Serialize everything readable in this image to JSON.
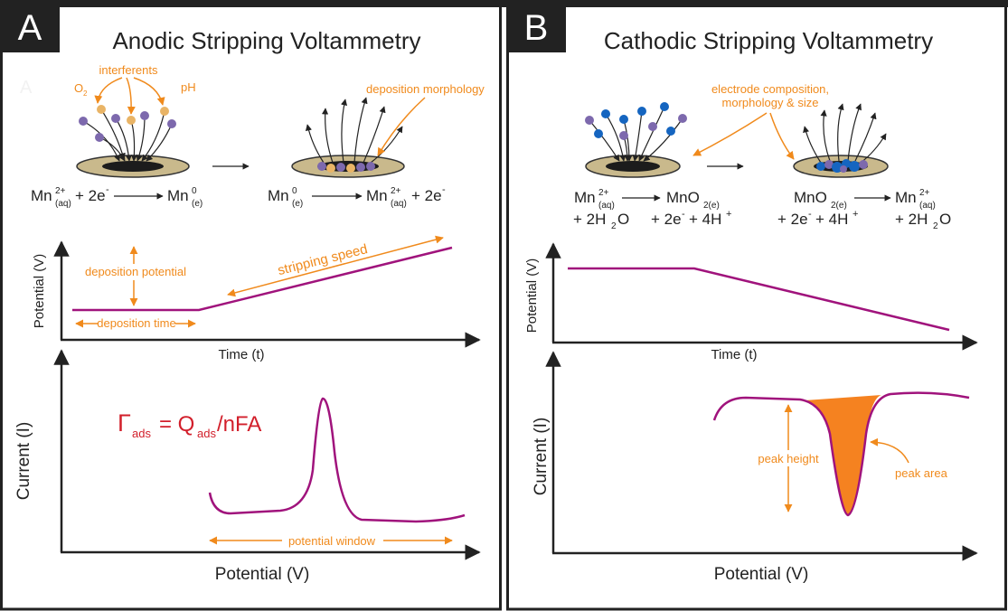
{
  "panel_a": {
    "label": "A",
    "faint_label": "A",
    "title": "Anodic Stripping Voltammetry",
    "interferents": "interferents",
    "o2": [
      "O",
      "2"
    ],
    "ph": "pH",
    "deposition_morphology": "deposition morphology",
    "reaction_deposition": [
      "Mn",
      "2+",
      "(aq)",
      "+ 2e",
      "-",
      "Mn",
      "0",
      "(e)"
    ],
    "reaction_stripping": [
      "Mn",
      "0",
      "(e)",
      "Mn",
      "2+",
      "(aq)",
      "+ 2e",
      "-"
    ],
    "time_plot": {
      "y_label": "Potential (V)",
      "x_label": "Time (t)",
      "deposition_potential": "deposition potential",
      "stripping_speed": "stripping speed",
      "deposition_time": "deposition time"
    },
    "current_plot": {
      "y_label": "Current (I)",
      "x_label": "Potential (V)",
      "formula": [
        "Γ",
        "ads",
        "= Q",
        "ads",
        "/nFA"
      ],
      "potential_window": "potential window"
    }
  },
  "panel_b": {
    "label": "B",
    "title": "Cathodic Stripping Voltammetry",
    "electrode_note": [
      "electrode composition,",
      "morphology & size"
    ],
    "reaction_deposition": {
      "line_1": [
        "Mn",
        "2+",
        "(aq)",
        "MnO",
        "2(e)"
      ],
      "line_2": [
        "+ 2H",
        "2",
        "O",
        "+ 2e",
        "-",
        "+ 4H",
        "+"
      ]
    },
    "reaction_stripping": {
      "line_1": [
        "MnO",
        "2(e)",
        "Mn",
        "2+",
        "(aq)"
      ],
      "line_2": [
        "+ 2e",
        "-",
        "+ 4H",
        "+",
        "+ 2H",
        "2",
        "O"
      ]
    },
    "time_plot": {
      "y_label": "Potential (V)",
      "x_label": "Time (t)"
    },
    "current_plot": {
      "y_label": "Current (I)",
      "x_label": "Potential (V)",
      "peak_height": "peak height",
      "peak_area": "peak area"
    }
  }
}
